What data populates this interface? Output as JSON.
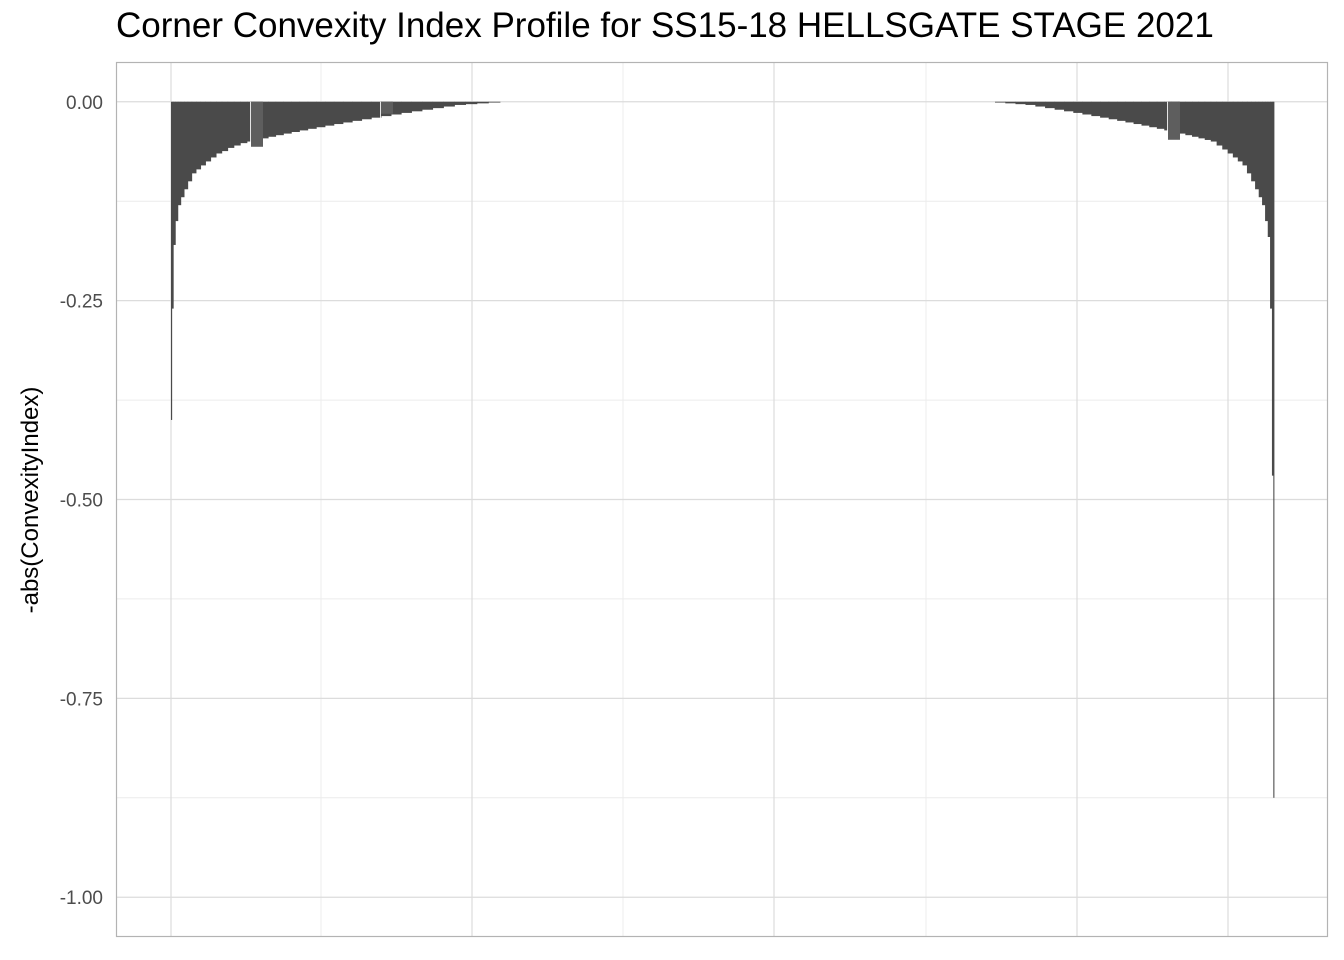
{
  "chart_data": {
    "type": "bar",
    "title": "Corner Convexity Index Profile for SS15-18 HELLSGATE STAGE 2021",
    "xlabel": "",
    "ylabel": "-abs(ConvexityIndex)",
    "ylim": [
      -1.05,
      0.05
    ],
    "y_ticks": [
      0.0,
      -0.25,
      -0.5,
      -0.75,
      -1.0
    ],
    "y_tick_labels": [
      "0.00",
      "-0.25",
      "-0.50",
      "-0.75",
      "-1.00"
    ],
    "x_ticks_shown": false,
    "grid": true,
    "legend": "none",
    "bar_color": "#4a4a4a",
    "highlight_color": "#5e5e5e",
    "gridline_color": "#dcdcdc",
    "panel_border_color": "#b3b3b3",
    "series": [
      {
        "values_are_ranked_profile": true,
        "left_side_values": [
          -0.4,
          -0.26,
          -0.18,
          -0.15,
          -0.13,
          -0.12,
          -0.11,
          -0.1,
          -0.09,
          -0.085,
          -0.08,
          -0.075,
          -0.07,
          -0.065,
          -0.062,
          -0.058,
          -0.055,
          -0.052,
          -0.05,
          -0.048,
          -0.046,
          -0.044,
          -0.042,
          -0.04,
          -0.038,
          -0.036,
          -0.034,
          -0.032,
          -0.03,
          -0.028,
          -0.026,
          -0.024,
          -0.022,
          -0.02,
          -0.018,
          -0.016,
          -0.014,
          -0.012,
          -0.01,
          -0.008,
          -0.006,
          -0.004,
          -0.003,
          -0.002,
          -0.001
        ],
        "right_side_values": [
          -0.001,
          -0.002,
          -0.003,
          -0.004,
          -0.006,
          -0.008,
          -0.01,
          -0.012,
          -0.014,
          -0.016,
          -0.018,
          -0.02,
          -0.022,
          -0.024,
          -0.026,
          -0.028,
          -0.03,
          -0.032,
          -0.034,
          -0.036,
          -0.038,
          -0.04,
          -0.042,
          -0.044,
          -0.046,
          -0.048,
          -0.05,
          -0.055,
          -0.06,
          -0.065,
          -0.07,
          -0.075,
          -0.08,
          -0.09,
          -0.1,
          -0.11,
          -0.12,
          -0.13,
          -0.15,
          -0.17,
          -0.26,
          -0.47,
          -0.875
        ]
      }
    ]
  }
}
